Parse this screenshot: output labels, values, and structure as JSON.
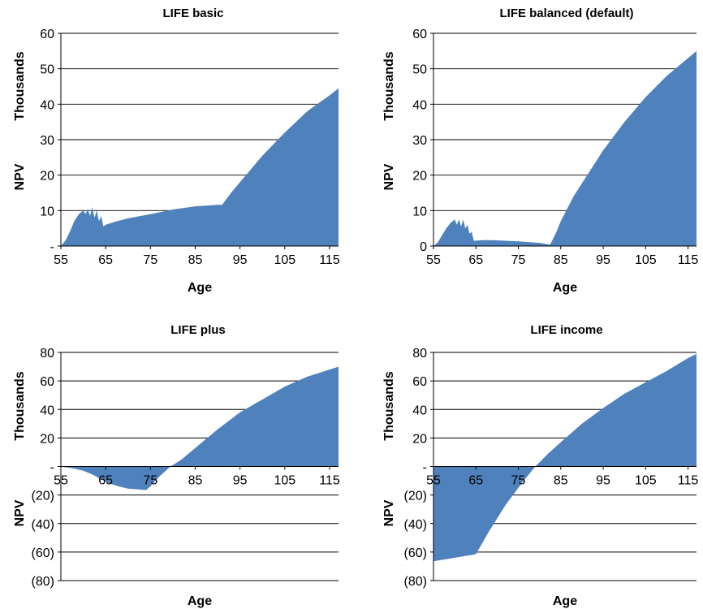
{
  "colors": {
    "area": "#4f81bd",
    "grid": "#000000",
    "text": "#000000"
  },
  "chart_data": [
    {
      "type": "area",
      "title": "LIFE basic",
      "xlabel": "Age",
      "ylabel": "NPV",
      "yunit": "Thousands",
      "xlim": [
        55,
        117
      ],
      "ylim": [
        0,
        60
      ],
      "xticks": [
        55,
        65,
        75,
        85,
        95,
        105,
        115
      ],
      "yticks": [
        {
          "value": 0,
          "label": "-"
        },
        {
          "value": 10,
          "label": "10"
        },
        {
          "value": 20,
          "label": "20"
        },
        {
          "value": 30,
          "label": "30"
        },
        {
          "value": 40,
          "label": "40"
        },
        {
          "value": 50,
          "label": "50"
        },
        {
          "value": 60,
          "label": "60"
        }
      ],
      "grid": true,
      "series": [
        {
          "points": [
            [
              55,
              0
            ],
            [
              56,
              1.5
            ],
            [
              57,
              4
            ],
            [
              58,
              7
            ],
            [
              59,
              9
            ],
            [
              60,
              10
            ],
            [
              60.5,
              9
            ],
            [
              61,
              10.5
            ],
            [
              61.5,
              8.5
            ],
            [
              62,
              11
            ],
            [
              62.5,
              8
            ],
            [
              63,
              10
            ],
            [
              63.5,
              7
            ],
            [
              64,
              8.5
            ],
            [
              64.5,
              5.5
            ],
            [
              65,
              6
            ],
            [
              67,
              6.8
            ],
            [
              70,
              7.8
            ],
            [
              75,
              9
            ],
            [
              80,
              10.3
            ],
            [
              85,
              11.2
            ],
            [
              90,
              11.6
            ],
            [
              91,
              11.6
            ],
            [
              93,
              15
            ],
            [
              95,
              18
            ],
            [
              100,
              25.5
            ],
            [
              105,
              32
            ],
            [
              110,
              38
            ],
            [
              115,
              42.5
            ],
            [
              117,
              44.5
            ]
          ]
        }
      ]
    },
    {
      "type": "area",
      "title": "LIFE balanced (default)",
      "xlabel": "Age",
      "ylabel": "NPV",
      "yunit": "Thousands",
      "xlim": [
        55,
        117
      ],
      "ylim": [
        0,
        60
      ],
      "xticks": [
        55,
        65,
        75,
        85,
        95,
        105,
        115
      ],
      "yticks": [
        {
          "value": 0,
          "label": "0"
        },
        {
          "value": 10,
          "label": "10"
        },
        {
          "value": 20,
          "label": "20"
        },
        {
          "value": 30,
          "label": "30"
        },
        {
          "value": 40,
          "label": "40"
        },
        {
          "value": 50,
          "label": "50"
        },
        {
          "value": 60,
          "label": "60"
        }
      ],
      "grid": true,
      "series": [
        {
          "points": [
            [
              55,
              0
            ],
            [
              56,
              1
            ],
            [
              57,
              3
            ],
            [
              58,
              5
            ],
            [
              59,
              6.5
            ],
            [
              60,
              7.5
            ],
            [
              60.5,
              6
            ],
            [
              61,
              7.5
            ],
            [
              61.5,
              5.5
            ],
            [
              62,
              7.5
            ],
            [
              62.5,
              5
            ],
            [
              63,
              6
            ],
            [
              63.5,
              3.5
            ],
            [
              64,
              4
            ],
            [
              64.5,
              1.5
            ],
            [
              65,
              1.5
            ],
            [
              67,
              1.7
            ],
            [
              70,
              1.6
            ],
            [
              75,
              1.3
            ],
            [
              80,
              0.9
            ],
            [
              82.5,
              0.4
            ],
            [
              84,
              4
            ],
            [
              85,
              7
            ],
            [
              88,
              14
            ],
            [
              95,
              27
            ],
            [
              100,
              35
            ],
            [
              105,
              42
            ],
            [
              110,
              48
            ],
            [
              115,
              53
            ],
            [
              117,
              55
            ]
          ]
        }
      ]
    },
    {
      "type": "area",
      "title": "LIFE plus",
      "xlabel": "Age",
      "ylabel": "NPV",
      "yunit": "Thousands",
      "xlim": [
        55,
        117
      ],
      "ylim": [
        -80,
        80
      ],
      "xticks": [
        55,
        65,
        75,
        85,
        95,
        105,
        115
      ],
      "yticks": [
        {
          "value": -80,
          "label": "(80)"
        },
        {
          "value": -60,
          "label": "(60)"
        },
        {
          "value": -40,
          "label": "(40)"
        },
        {
          "value": -20,
          "label": "(20)"
        },
        {
          "value": 0,
          "label": "-"
        },
        {
          "value": 20,
          "label": "20"
        },
        {
          "value": 40,
          "label": "40"
        },
        {
          "value": 60,
          "label": "60"
        },
        {
          "value": 80,
          "label": "80"
        }
      ],
      "grid": true,
      "series": [
        {
          "points": [
            [
              55,
              0
            ],
            [
              58,
              -1.5
            ],
            [
              60,
              -3
            ],
            [
              62,
              -5.5
            ],
            [
              64,
              -9
            ],
            [
              66,
              -12
            ],
            [
              68,
              -14
            ],
            [
              70,
              -15.5
            ],
            [
              72,
              -16
            ],
            [
              74,
              -16.5
            ],
            [
              75,
              -14
            ],
            [
              77,
              -7
            ],
            [
              79.5,
              0
            ],
            [
              82,
              5
            ],
            [
              85,
              13
            ],
            [
              90,
              26
            ],
            [
              95,
              38
            ],
            [
              100,
              47
            ],
            [
              105,
              56
            ],
            [
              110,
              63
            ],
            [
              115,
              68
            ],
            [
              117,
              70
            ]
          ]
        }
      ]
    },
    {
      "type": "area",
      "title": "LIFE income",
      "xlabel": "Age",
      "ylabel": "NPV",
      "yunit": "Thousands",
      "xlim": [
        55,
        117
      ],
      "ylim": [
        -80,
        80
      ],
      "xticks": [
        55,
        65,
        75,
        85,
        95,
        105,
        115
      ],
      "yticks": [
        {
          "value": -80,
          "label": "(80)"
        },
        {
          "value": -60,
          "label": "(60)"
        },
        {
          "value": -40,
          "label": "(40)"
        },
        {
          "value": -20,
          "label": "(20)"
        },
        {
          "value": 0,
          "label": "-"
        },
        {
          "value": 20,
          "label": "20"
        },
        {
          "value": 40,
          "label": "40"
        },
        {
          "value": 60,
          "label": "60"
        },
        {
          "value": 80,
          "label": "80"
        }
      ],
      "grid": true,
      "series": [
        {
          "points": [
            [
              55,
              -66.5
            ],
            [
              60,
              -64
            ],
            [
              65,
              -61.5
            ],
            [
              68,
              -46
            ],
            [
              72,
              -27
            ],
            [
              76,
              -11
            ],
            [
              79,
              0
            ],
            [
              82,
              9
            ],
            [
              85,
              17
            ],
            [
              90,
              30
            ],
            [
              95,
              41
            ],
            [
              100,
              51
            ],
            [
              105,
              59
            ],
            [
              110,
              67
            ],
            [
              115,
              76
            ],
            [
              117,
              79
            ]
          ]
        }
      ]
    }
  ]
}
